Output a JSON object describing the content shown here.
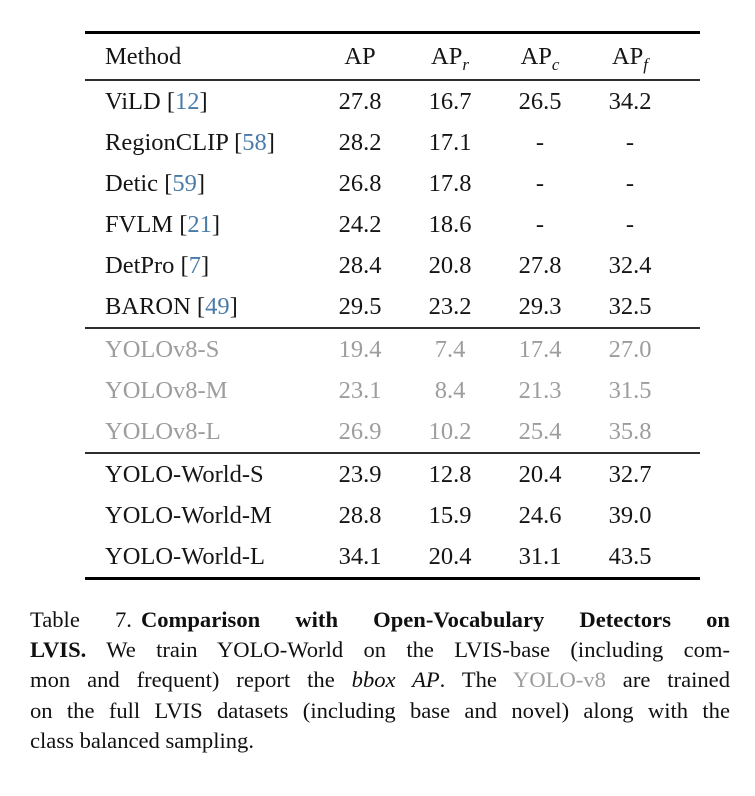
{
  "colors": {
    "citation": "#4a7ba8",
    "gray_text": "#9d9d9d",
    "text": "#151515",
    "rule": "#000000"
  },
  "table": {
    "cite_open": "[",
    "cite_close": "]",
    "columns": [
      {
        "key": "method",
        "label": "Method",
        "sub": ""
      },
      {
        "key": "ap",
        "label": "AP",
        "sub": ""
      },
      {
        "key": "ap-r",
        "label": "AP",
        "sub": "r"
      },
      {
        "key": "ap-c",
        "label": "AP",
        "sub": "c"
      },
      {
        "key": "ap-f",
        "label": "AP",
        "sub": "f"
      }
    ],
    "rows": [
      {
        "method": "ViLD",
        "cite": "12",
        "values": [
          "27.8",
          "16.7",
          "26.5",
          "34.2"
        ],
        "gray": false,
        "rule_above": false
      },
      {
        "method": "RegionCLIP",
        "cite": "58",
        "values": [
          "28.2",
          "17.1",
          "-",
          "-"
        ],
        "gray": false,
        "rule_above": false
      },
      {
        "method": "Detic",
        "cite": "59",
        "values": [
          "26.8",
          "17.8",
          "-",
          "-"
        ],
        "gray": false,
        "rule_above": false
      },
      {
        "method": "FVLM",
        "cite": "21",
        "values": [
          "24.2",
          "18.6",
          "-",
          "-"
        ],
        "gray": false,
        "rule_above": false
      },
      {
        "method": "DetPro",
        "cite": "7",
        "values": [
          "28.4",
          "20.8",
          "27.8",
          "32.4"
        ],
        "gray": false,
        "rule_above": false
      },
      {
        "method": "BARON",
        "cite": "49",
        "values": [
          "29.5",
          "23.2",
          "29.3",
          "32.5"
        ],
        "gray": false,
        "rule_above": false
      },
      {
        "method": "YOLOv8-S",
        "cite": "",
        "values": [
          "19.4",
          "7.4",
          "17.4",
          "27.0"
        ],
        "gray": true,
        "rule_above": true
      },
      {
        "method": "YOLOv8-M",
        "cite": "",
        "values": [
          "23.1",
          "8.4",
          "21.3",
          "31.5"
        ],
        "gray": true,
        "rule_above": false
      },
      {
        "method": "YOLOv8-L",
        "cite": "",
        "values": [
          "26.9",
          "10.2",
          "25.4",
          "35.8"
        ],
        "gray": true,
        "rule_above": false
      },
      {
        "method": "YOLO-World-S",
        "cite": "",
        "values": [
          "23.9",
          "12.8",
          "20.4",
          "32.7"
        ],
        "gray": false,
        "rule_above": true
      },
      {
        "method": "YOLO-World-M",
        "cite": "",
        "values": [
          "28.8",
          "15.9",
          "24.6",
          "39.0"
        ],
        "gray": false,
        "rule_above": false
      },
      {
        "method": "YOLO-World-L",
        "cite": "",
        "values": [
          "34.1",
          "20.4",
          "31.1",
          "43.5"
        ],
        "gray": false,
        "rule_above": false
      }
    ]
  },
  "caption": {
    "line1_label": "Table 7.",
    "line1_bold": "Comparison with Open-Vocabulary Detectors on",
    "line2_bold": "LVIS.",
    "line2_rest": "We train YOLO-World on the LVIS-base (including com-",
    "line3_a": "mon and frequent) report the ",
    "line3_italic": "bbox AP",
    "line3_b": ". The ",
    "line3_gray": "YOLO-v8",
    "line3_c": " are trained",
    "line4": "on the full LVIS datasets (including base and novel) along with the",
    "line5": "class balanced sampling."
  }
}
